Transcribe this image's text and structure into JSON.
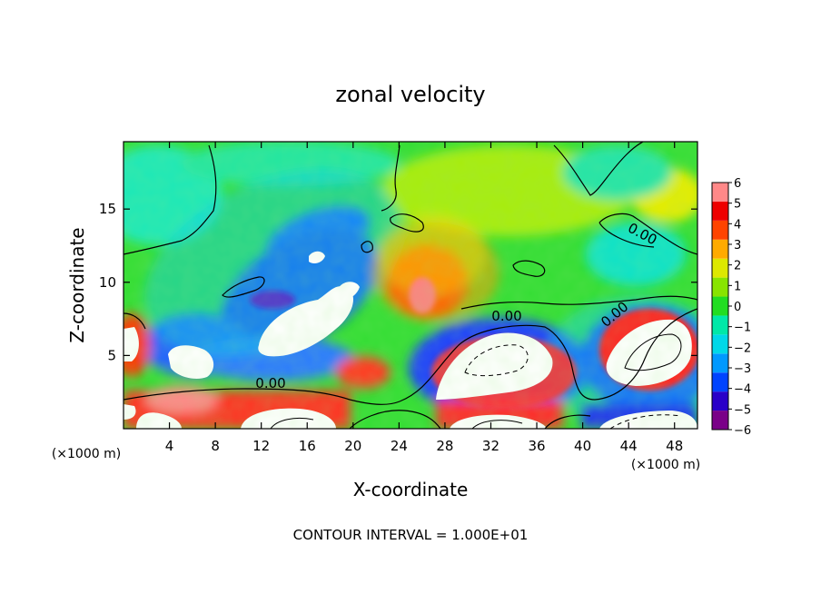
{
  "chart_data": {
    "type": "heatmap",
    "title": "zonal velocity",
    "xlabel": "X-coordinate",
    "ylabel": "Z-coordinate",
    "x_unit_note": "(×1000 m)",
    "z_unit_note": "(×1000 m)",
    "xlim": [
      0,
      50
    ],
    "ylim": [
      0,
      19.6
    ],
    "x_ticks": [
      4,
      8,
      12,
      16,
      20,
      24,
      28,
      32,
      36,
      40,
      44,
      48
    ],
    "y_ticks": [
      5,
      10,
      15
    ],
    "colorbar": {
      "min": -6,
      "max": 6,
      "ticks": [
        6,
        5,
        4,
        3,
        2,
        1,
        0,
        -1,
        -2,
        -3,
        -4,
        -5,
        -6
      ],
      "colors": [
        "#7a0088",
        "#2a00c8",
        "#0044ff",
        "#0099ff",
        "#00d8e8",
        "#00e8a8",
        "#22dd22",
        "#88e400",
        "#dde800",
        "#ffaa00",
        "#ff4400",
        "#ee0000",
        "#ff8888"
      ]
    },
    "contour_labels": [
      "0.00",
      "0.00",
      "0.00",
      "0.00"
    ],
    "contour_interval_text": "CONTOUR INTERVAL = 1.000E+01",
    "features": [
      {
        "kind": "negative-blob",
        "x": 14,
        "z": 9.5,
        "value": -6
      },
      {
        "kind": "negative-blob",
        "x": 27,
        "z": 5,
        "value": -5
      },
      {
        "kind": "positive-blob",
        "x": 26,
        "z": 9,
        "value": 5
      },
      {
        "kind": "white-core",
        "x": 33,
        "z": 4,
        "value": -7
      },
      {
        "kind": "white-core",
        "x": 46,
        "z": 5.5,
        "value": -7
      },
      {
        "kind": "white-core",
        "x": 15.5,
        "z": 7.5,
        "value": -7
      },
      {
        "kind": "white-core",
        "x": 6.2,
        "z": 5,
        "value": -7
      }
    ]
  }
}
